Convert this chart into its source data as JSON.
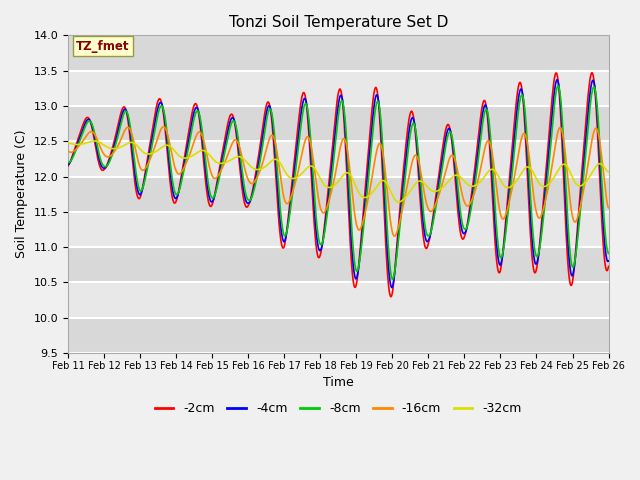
{
  "title": "Tonzi Soil Temperature Set D",
  "xlabel": "Time",
  "ylabel": "Soil Temperature (C)",
  "ylim": [
    9.5,
    14.0
  ],
  "annotation": "TZ_fmet",
  "colors": {
    "-2cm": "#ff0000",
    "-4cm": "#0000ff",
    "-8cm": "#00cc00",
    "-16cm": "#ff8800",
    "-32cm": "#dddd00"
  },
  "legend_labels": [
    "-2cm",
    "-4cm",
    "-8cm",
    "-16cm",
    "-32cm"
  ],
  "x_tick_labels": [
    "Feb 11",
    "Feb 12",
    "Feb 13",
    "Feb 14",
    "Feb 15",
    "Feb 16",
    "Feb 17",
    "Feb 18",
    "Feb 19",
    "Feb 20",
    "Feb 21",
    "Feb 22",
    "Feb 23",
    "Feb 24",
    "Feb 25",
    "Feb 26"
  ],
  "plot_bg_color": "#e8e8e8",
  "line_width": 1.2
}
